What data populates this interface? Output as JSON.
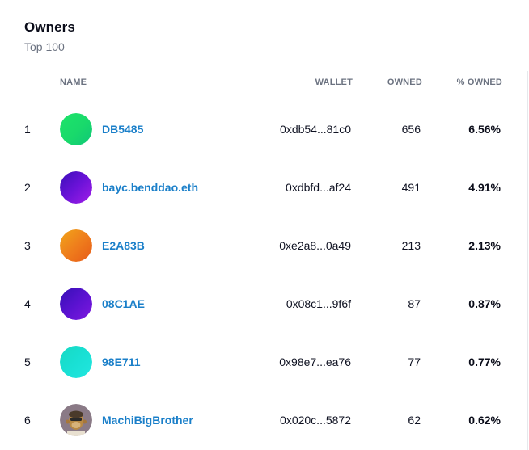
{
  "header": {
    "title": "Owners",
    "subtitle": "Top 100"
  },
  "columns": {
    "name": "NAME",
    "wallet": "WALLET",
    "owned": "OWNED",
    "pct_owned": "% OWNED"
  },
  "rows": [
    {
      "rank": "1",
      "name": "DB5485",
      "wallet": "0xdb54...81c0",
      "owned": "656",
      "pct": "6.56%",
      "avatar": "gradient-green"
    },
    {
      "rank": "2",
      "name": "bayc.benddao.eth",
      "wallet": "0xdbfd...af24",
      "owned": "491",
      "pct": "4.91%",
      "avatar": "gradient-purple"
    },
    {
      "rank": "3",
      "name": "E2A83B",
      "wallet": "0xe2a8...0a49",
      "owned": "213",
      "pct": "2.13%",
      "avatar": "gradient-orange"
    },
    {
      "rank": "4",
      "name": "08C1AE",
      "wallet": "0x08c1...9f6f",
      "owned": "87",
      "pct": "0.87%",
      "avatar": "gradient-indigo"
    },
    {
      "rank": "5",
      "name": "98E711",
      "wallet": "0x98e7...ea76",
      "owned": "77",
      "pct": "0.77%",
      "avatar": "gradient-cyan"
    },
    {
      "rank": "6",
      "name": "MachiBigBrother",
      "wallet": "0x020c...5872",
      "owned": "62",
      "pct": "0.62%",
      "avatar": "ape-avatar"
    }
  ],
  "colors": {
    "link": "#1a7fc9",
    "muted": "#6b7280"
  }
}
